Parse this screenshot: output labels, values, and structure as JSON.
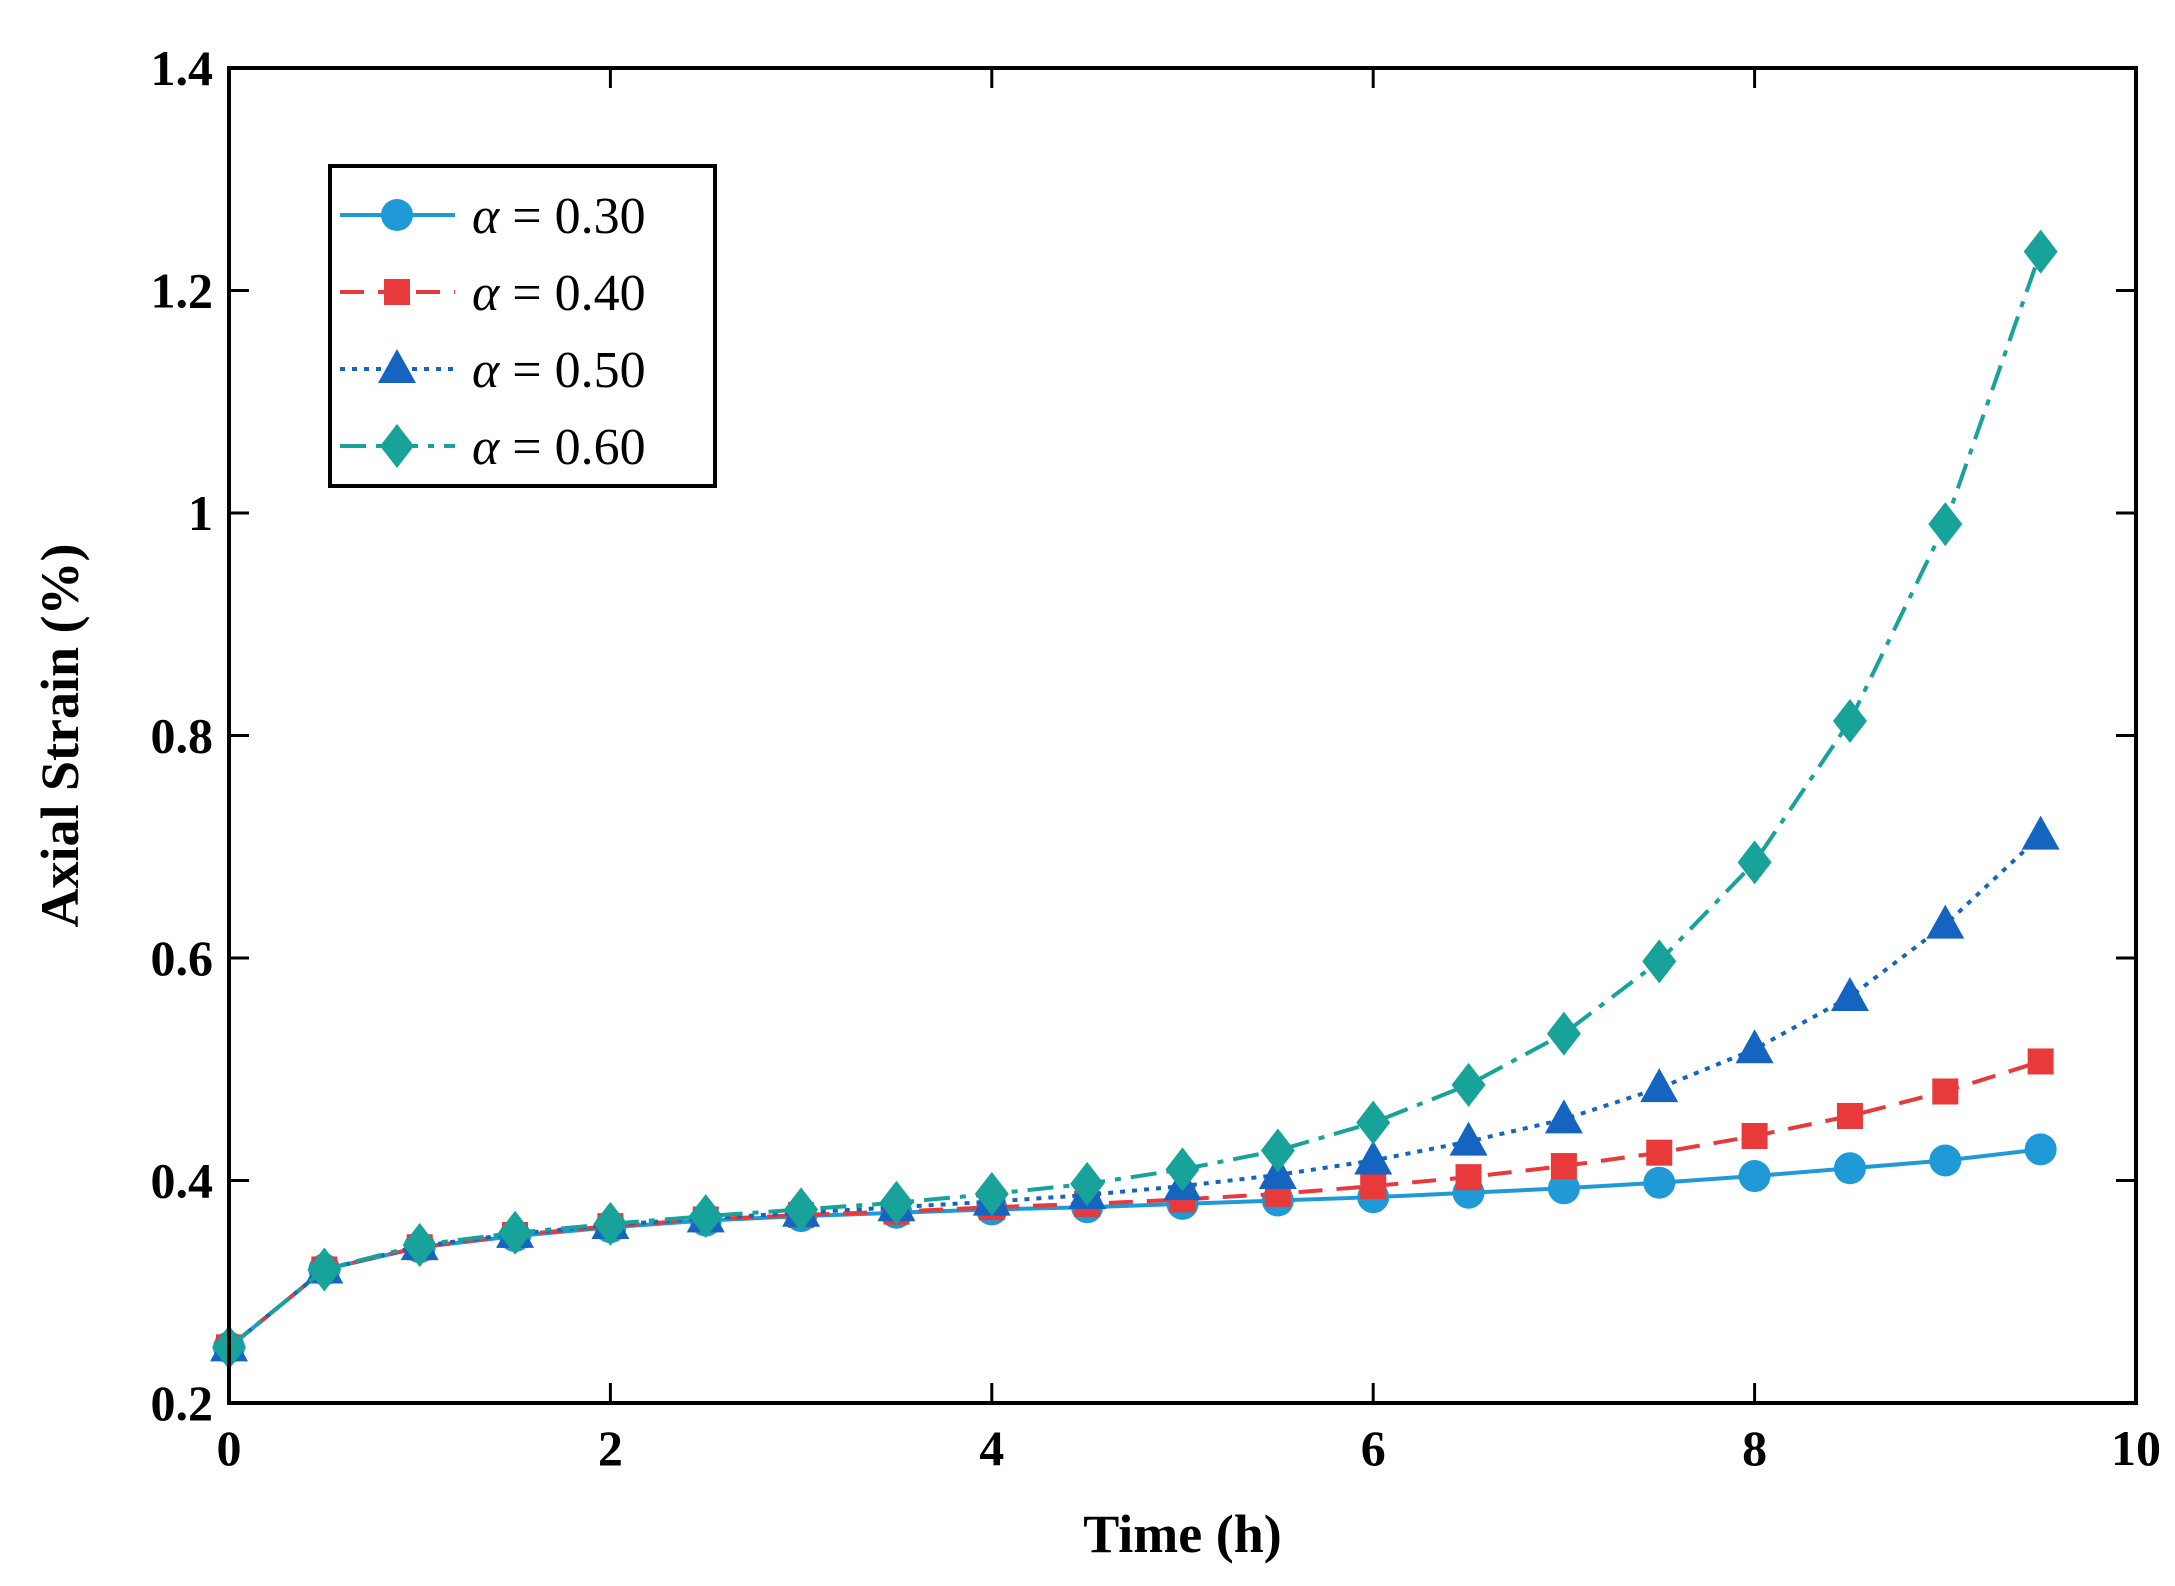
{
  "chart_data": {
    "type": "line",
    "title": "",
    "xlabel": "Time (h)",
    "ylabel": "Axial Strain (%)",
    "xlim": [
      0,
      10
    ],
    "ylim": [
      0.2,
      1.4
    ],
    "xticks": [
      0,
      2,
      4,
      6,
      8,
      10
    ],
    "xtick_labels": [
      "0",
      "2",
      "4",
      "6",
      "8",
      "10"
    ],
    "yticks": [
      0.2,
      0.4,
      0.6,
      0.8,
      1.0,
      1.2,
      1.4
    ],
    "ytick_labels": [
      "0.2",
      "0.4",
      "0.6",
      "0.8",
      "1",
      "1.2",
      "1.4"
    ],
    "grid": false,
    "legend_position": "top-left",
    "x": [
      0,
      0.5,
      1,
      1.5,
      2,
      2.5,
      3,
      3.5,
      4,
      4.5,
      5,
      5.5,
      6,
      6.5,
      7,
      7.5,
      8,
      8.5,
      9,
      9.5
    ],
    "series": [
      {
        "name": "α = 0.30",
        "symbol": "α",
        "value_label": " = 0.30",
        "color": "#1f9ad6",
        "marker": "circle",
        "dash": "solid",
        "values": [
          0.25,
          0.32,
          0.34,
          0.35,
          0.358,
          0.364,
          0.368,
          0.371,
          0.374,
          0.376,
          0.379,
          0.382,
          0.385,
          0.389,
          0.393,
          0.398,
          0.404,
          0.411,
          0.418,
          0.428
        ]
      },
      {
        "name": "α = 0.40",
        "symbol": "α",
        "value_label": " = 0.40",
        "color": "#e8393b",
        "marker": "square",
        "dash": "dashed",
        "values": [
          0.25,
          0.32,
          0.34,
          0.351,
          0.359,
          0.365,
          0.369,
          0.372,
          0.376,
          0.379,
          0.383,
          0.388,
          0.395,
          0.403,
          0.413,
          0.425,
          0.44,
          0.458,
          0.48,
          0.507
        ]
      },
      {
        "name": "α = 0.50",
        "symbol": "α",
        "value_label": " = 0.50",
        "color": "#1565c0",
        "marker": "triangle",
        "dash": "dotted",
        "values": [
          0.25,
          0.32,
          0.341,
          0.352,
          0.36,
          0.366,
          0.371,
          0.376,
          0.381,
          0.387,
          0.395,
          0.405,
          0.418,
          0.435,
          0.455,
          0.483,
          0.518,
          0.565,
          0.63,
          0.71
        ]
      },
      {
        "name": "α = 0.60",
        "symbol": "α",
        "value_label": " = 0.60",
        "color": "#17a29a",
        "marker": "diamond",
        "dash": "dashdot",
        "values": [
          0.25,
          0.32,
          0.342,
          0.353,
          0.361,
          0.368,
          0.374,
          0.38,
          0.388,
          0.397,
          0.41,
          0.427,
          0.452,
          0.486,
          0.532,
          0.597,
          0.686,
          0.813,
          0.99,
          1.235
        ]
      }
    ]
  }
}
